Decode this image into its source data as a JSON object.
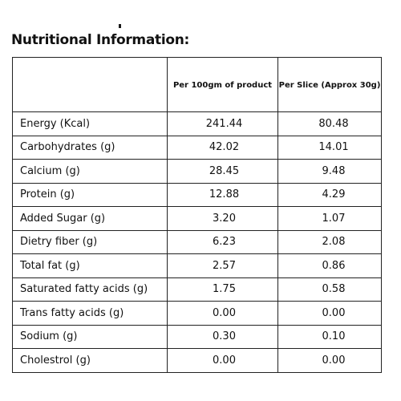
{
  "title": "Nutritional Information:",
  "table": {
    "headers": [
      "",
      "Per 100gm of product",
      "Per Slice (Approx 30g)"
    ],
    "rows": [
      {
        "nutrient": "Energy (Kcal)",
        "per_100g": "241.44",
        "per_slice": "80.48"
      },
      {
        "nutrient": "Carbohydrates (g)",
        "per_100g": "42.02",
        "per_slice": "14.01"
      },
      {
        "nutrient": "Calcium (g)",
        "per_100g": "28.45",
        "per_slice": "9.48"
      },
      {
        "nutrient": "Protein (g)",
        "per_100g": "12.88",
        "per_slice": "4.29"
      },
      {
        "nutrient": "Added Sugar (g)",
        "per_100g": "3.20",
        "per_slice": "1.07"
      },
      {
        "nutrient": "Dietry fiber (g)",
        "per_100g": "6.23",
        "per_slice": "2.08"
      },
      {
        "nutrient": "Total fat (g)",
        "per_100g": "2.57",
        "per_slice": "0.86"
      },
      {
        "nutrient": "Saturated fatty acids (g)",
        "per_100g": "1.75",
        "per_slice": "0.58"
      },
      {
        "nutrient": "Trans fatty acids (g)",
        "per_100g": "0.00",
        "per_slice": "0.00"
      },
      {
        "nutrient": "Sodium (g)",
        "per_100g": "0.30",
        "per_slice": "0.10"
      },
      {
        "nutrient": "Cholestrol (g)",
        "per_100g": "0.00",
        "per_slice": "0.00"
      }
    ]
  }
}
